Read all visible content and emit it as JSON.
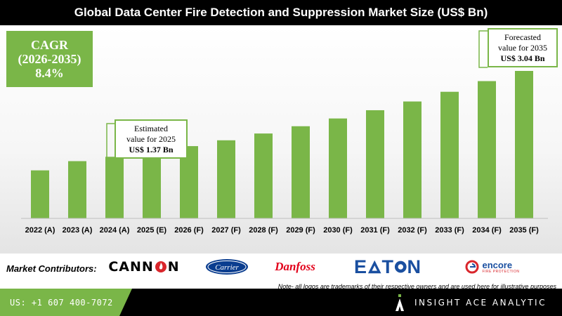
{
  "title": "Global Data Center Fire Detection and Suppression Market Size (US$ Bn)",
  "cagr": {
    "line1": "CAGR",
    "line2": "(2026-2035)",
    "value": "8.4%"
  },
  "callouts": {
    "estimated": {
      "line1": "Estimated",
      "line2": "value for 2025",
      "value": "US$ 1.37 Bn"
    },
    "forecasted": {
      "line1": "Forecasted",
      "line2": "value for 2035",
      "value": "US$ 3.04 Bn"
    }
  },
  "colors": {
    "bar": "#7ab648",
    "accent": "#7ab648",
    "header": "#000000"
  },
  "chart_data": {
    "type": "bar",
    "title": "Global Data Center Fire Detection and Suppression Market Size (US$ Bn)",
    "categories": [
      "2022 (A)",
      "2023 (A)",
      "2024 (A)",
      "2025 (E)",
      "2026 (F)",
      "2027 (F)",
      "2028 (F)",
      "2029 (F)",
      "2030 (F)",
      "2031 (F)",
      "2032 (F)",
      "2033 (F)",
      "2034 (F)",
      "2035 (F)"
    ],
    "values": [
      0.99,
      1.18,
      1.27,
      1.37,
      1.49,
      1.61,
      1.75,
      1.9,
      2.06,
      2.23,
      2.41,
      2.61,
      2.83,
      3.04
    ],
    "ylim": [
      0,
      3.04
    ],
    "grid": false,
    "legend": "none"
  },
  "contributors": {
    "label": "Market Contributors:",
    "logos": [
      {
        "name": "CANNON",
        "text_a": "CANN",
        "text_b": "N"
      },
      {
        "name": "Carrier",
        "text": "Carrier"
      },
      {
        "name": "Danfoss",
        "text": "Danfoss"
      },
      {
        "name": "EATON",
        "text_a": "E",
        "text_b": "T",
        "text_c": "N"
      },
      {
        "name": "encore",
        "text": "encore",
        "subtext": "FIRE PROTECTION"
      }
    ],
    "note": "Note- all logos are trademarks of their respective owners and are used here for illustrative purposes"
  },
  "footer": {
    "phone": "US: +1 607 400-7072",
    "brand": "INSIGHT ACE ANALYTIC"
  },
  "icons": {
    "brand_logo": "insightace-logo-icon",
    "flame": "flame-icon"
  }
}
